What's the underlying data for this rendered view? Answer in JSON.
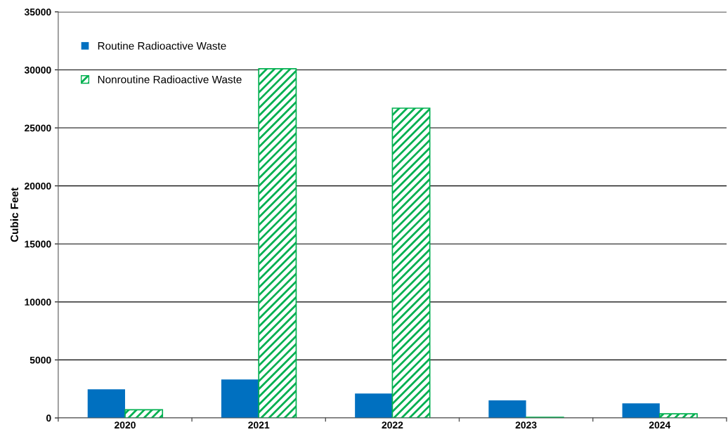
{
  "chart_data": {
    "type": "bar",
    "ylabel": "Cubic Feet",
    "categories": [
      "2020",
      "2021",
      "2022",
      "2023",
      "2024"
    ],
    "series": [
      {
        "name": "Routine Radioactive Waste",
        "color": "#0070c0",
        "values": [
          2460,
          3320,
          2100,
          1510,
          1250
        ]
      },
      {
        "name": "Nonroutine Radioactive Waste",
        "color": "#00b050",
        "values": [
          700,
          30100,
          26700,
          50,
          360
        ]
      }
    ],
    "ylim": [
      0,
      35000
    ],
    "yticks": [
      0,
      5000,
      10000,
      15000,
      20000,
      25000,
      30000,
      35000
    ],
    "grid": "y",
    "legend": "top left"
  }
}
